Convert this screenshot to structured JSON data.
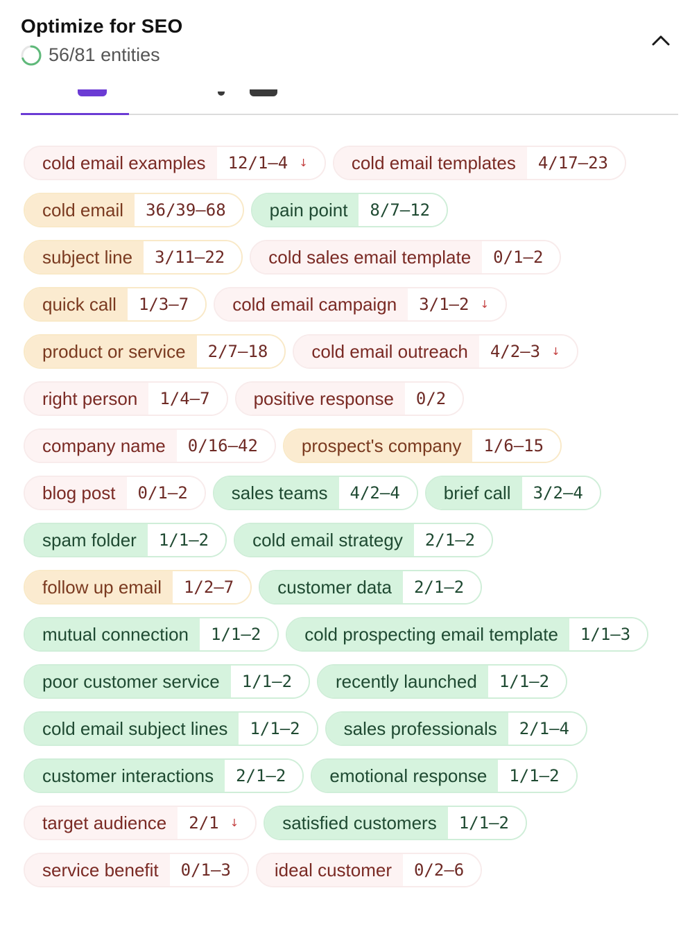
{
  "panel": {
    "title": "Optimize for SEO",
    "progress_text": "56/81 entities",
    "progress_fraction": 0.69,
    "accent_color": "#6b3bd4",
    "ring_color": "#5fb97a"
  },
  "entities": [
    {
      "name": "cold email examples",
      "count": "12/1–4",
      "status": "low",
      "over": true
    },
    {
      "name": "cold email templates",
      "count": "4/17–23",
      "status": "low",
      "over": false
    },
    {
      "name": "cold email",
      "count": "36/39–68",
      "status": "mid",
      "over": false
    },
    {
      "name": "pain point",
      "count": "8/7–12",
      "status": "good",
      "over": false
    },
    {
      "name": "subject line",
      "count": "3/11–22",
      "status": "mid",
      "over": false
    },
    {
      "name": "cold sales email template",
      "count": "0/1–2",
      "status": "low",
      "over": false
    },
    {
      "name": "quick call",
      "count": "1/3–7",
      "status": "mid",
      "over": false
    },
    {
      "name": "cold email campaign",
      "count": "3/1–2",
      "status": "low",
      "over": true
    },
    {
      "name": "product or service",
      "count": "2/7–18",
      "status": "mid",
      "over": false
    },
    {
      "name": "cold email outreach",
      "count": "4/2–3",
      "status": "low",
      "over": true
    },
    {
      "name": "right person",
      "count": "1/4–7",
      "status": "low",
      "over": false
    },
    {
      "name": "positive response",
      "count": "0/2",
      "status": "low",
      "over": false
    },
    {
      "name": "company name",
      "count": "0/16–42",
      "status": "low",
      "over": false
    },
    {
      "name": "prospect's company",
      "count": "1/6–15",
      "status": "mid",
      "over": false
    },
    {
      "name": "blog post",
      "count": "0/1–2",
      "status": "low",
      "over": false
    },
    {
      "name": "sales teams",
      "count": "4/2–4",
      "status": "good",
      "over": false
    },
    {
      "name": "brief call",
      "count": "3/2–4",
      "status": "good",
      "over": false
    },
    {
      "name": "spam folder",
      "count": "1/1–2",
      "status": "good",
      "over": false
    },
    {
      "name": "cold email strategy",
      "count": "2/1–2",
      "status": "good",
      "over": false
    },
    {
      "name": "follow up email",
      "count": "1/2–7",
      "status": "mid",
      "over": false
    },
    {
      "name": "customer data",
      "count": "2/1–2",
      "status": "good",
      "over": false
    },
    {
      "name": "mutual connection",
      "count": "1/1–2",
      "status": "good",
      "over": false
    },
    {
      "name": "cold prospecting email template",
      "count": "1/1–3",
      "status": "good",
      "over": false
    },
    {
      "name": "poor customer service",
      "count": "1/1–2",
      "status": "good",
      "over": false
    },
    {
      "name": "recently launched",
      "count": "1/1–2",
      "status": "good",
      "over": false
    },
    {
      "name": "cold email subject lines",
      "count": "1/1–2",
      "status": "good",
      "over": false
    },
    {
      "name": "sales professionals",
      "count": "2/1–4",
      "status": "good",
      "over": false
    },
    {
      "name": "customer interactions",
      "count": "2/1–2",
      "status": "good",
      "over": false
    },
    {
      "name": "emotional response",
      "count": "1/1–2",
      "status": "good",
      "over": false
    },
    {
      "name": "target audience",
      "count": "2/1",
      "status": "low",
      "over": true
    },
    {
      "name": "satisfied customers",
      "count": "1/1–2",
      "status": "good",
      "over": false
    },
    {
      "name": "service benefit",
      "count": "0/1–3",
      "status": "low",
      "over": false
    },
    {
      "name": "ideal customer",
      "count": "0/2–6",
      "status": "low",
      "over": false
    }
  ],
  "arrow_glyph": "↓",
  "icons": {
    "collapse": "chevron-up-icon",
    "progress": "progress-ring-icon"
  }
}
